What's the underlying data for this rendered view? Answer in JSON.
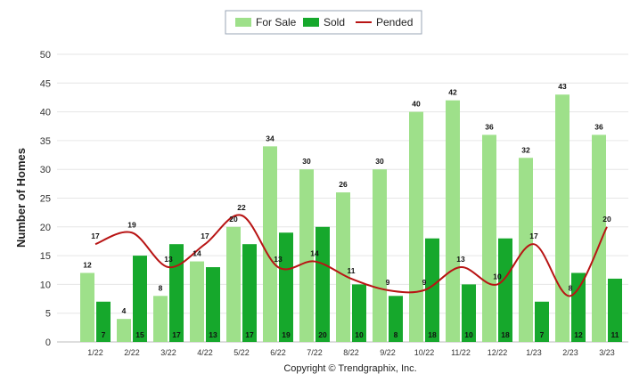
{
  "chart_data": {
    "type": "bar",
    "categories": [
      "1/22",
      "2/22",
      "3/22",
      "4/22",
      "5/22",
      "6/22",
      "7/22",
      "8/22",
      "9/22",
      "10/22",
      "11/22",
      "12/22",
      "1/23",
      "2/23",
      "3/23"
    ],
    "series": [
      {
        "name": "For Sale",
        "type": "bar",
        "values": [
          12,
          4,
          8,
          14,
          20,
          34,
          30,
          26,
          30,
          40,
          42,
          36,
          32,
          43,
          36
        ]
      },
      {
        "name": "Sold",
        "type": "bar",
        "values": [
          7,
          15,
          17,
          13,
          17,
          19,
          20,
          10,
          8,
          18,
          10,
          18,
          7,
          12,
          11
        ]
      },
      {
        "name": "Pended",
        "type": "line",
        "values": [
          17,
          19,
          13,
          17,
          22,
          13,
          14,
          11,
          9,
          9,
          13,
          10,
          17,
          8,
          20
        ]
      }
    ],
    "ylabel": "Number of Homes",
    "xlabel": "",
    "ylim": [
      0,
      50
    ],
    "yticks": [
      0,
      5,
      10,
      15,
      20,
      25,
      30,
      35,
      40,
      45,
      50
    ],
    "grid": true,
    "legend_position": "top-center",
    "colors": {
      "for_sale": "#9ee08a",
      "sold": "#16a82c",
      "pended": "#b81414"
    }
  },
  "footer": {
    "copyright": "Copyright © Trendgraphix, Inc."
  }
}
